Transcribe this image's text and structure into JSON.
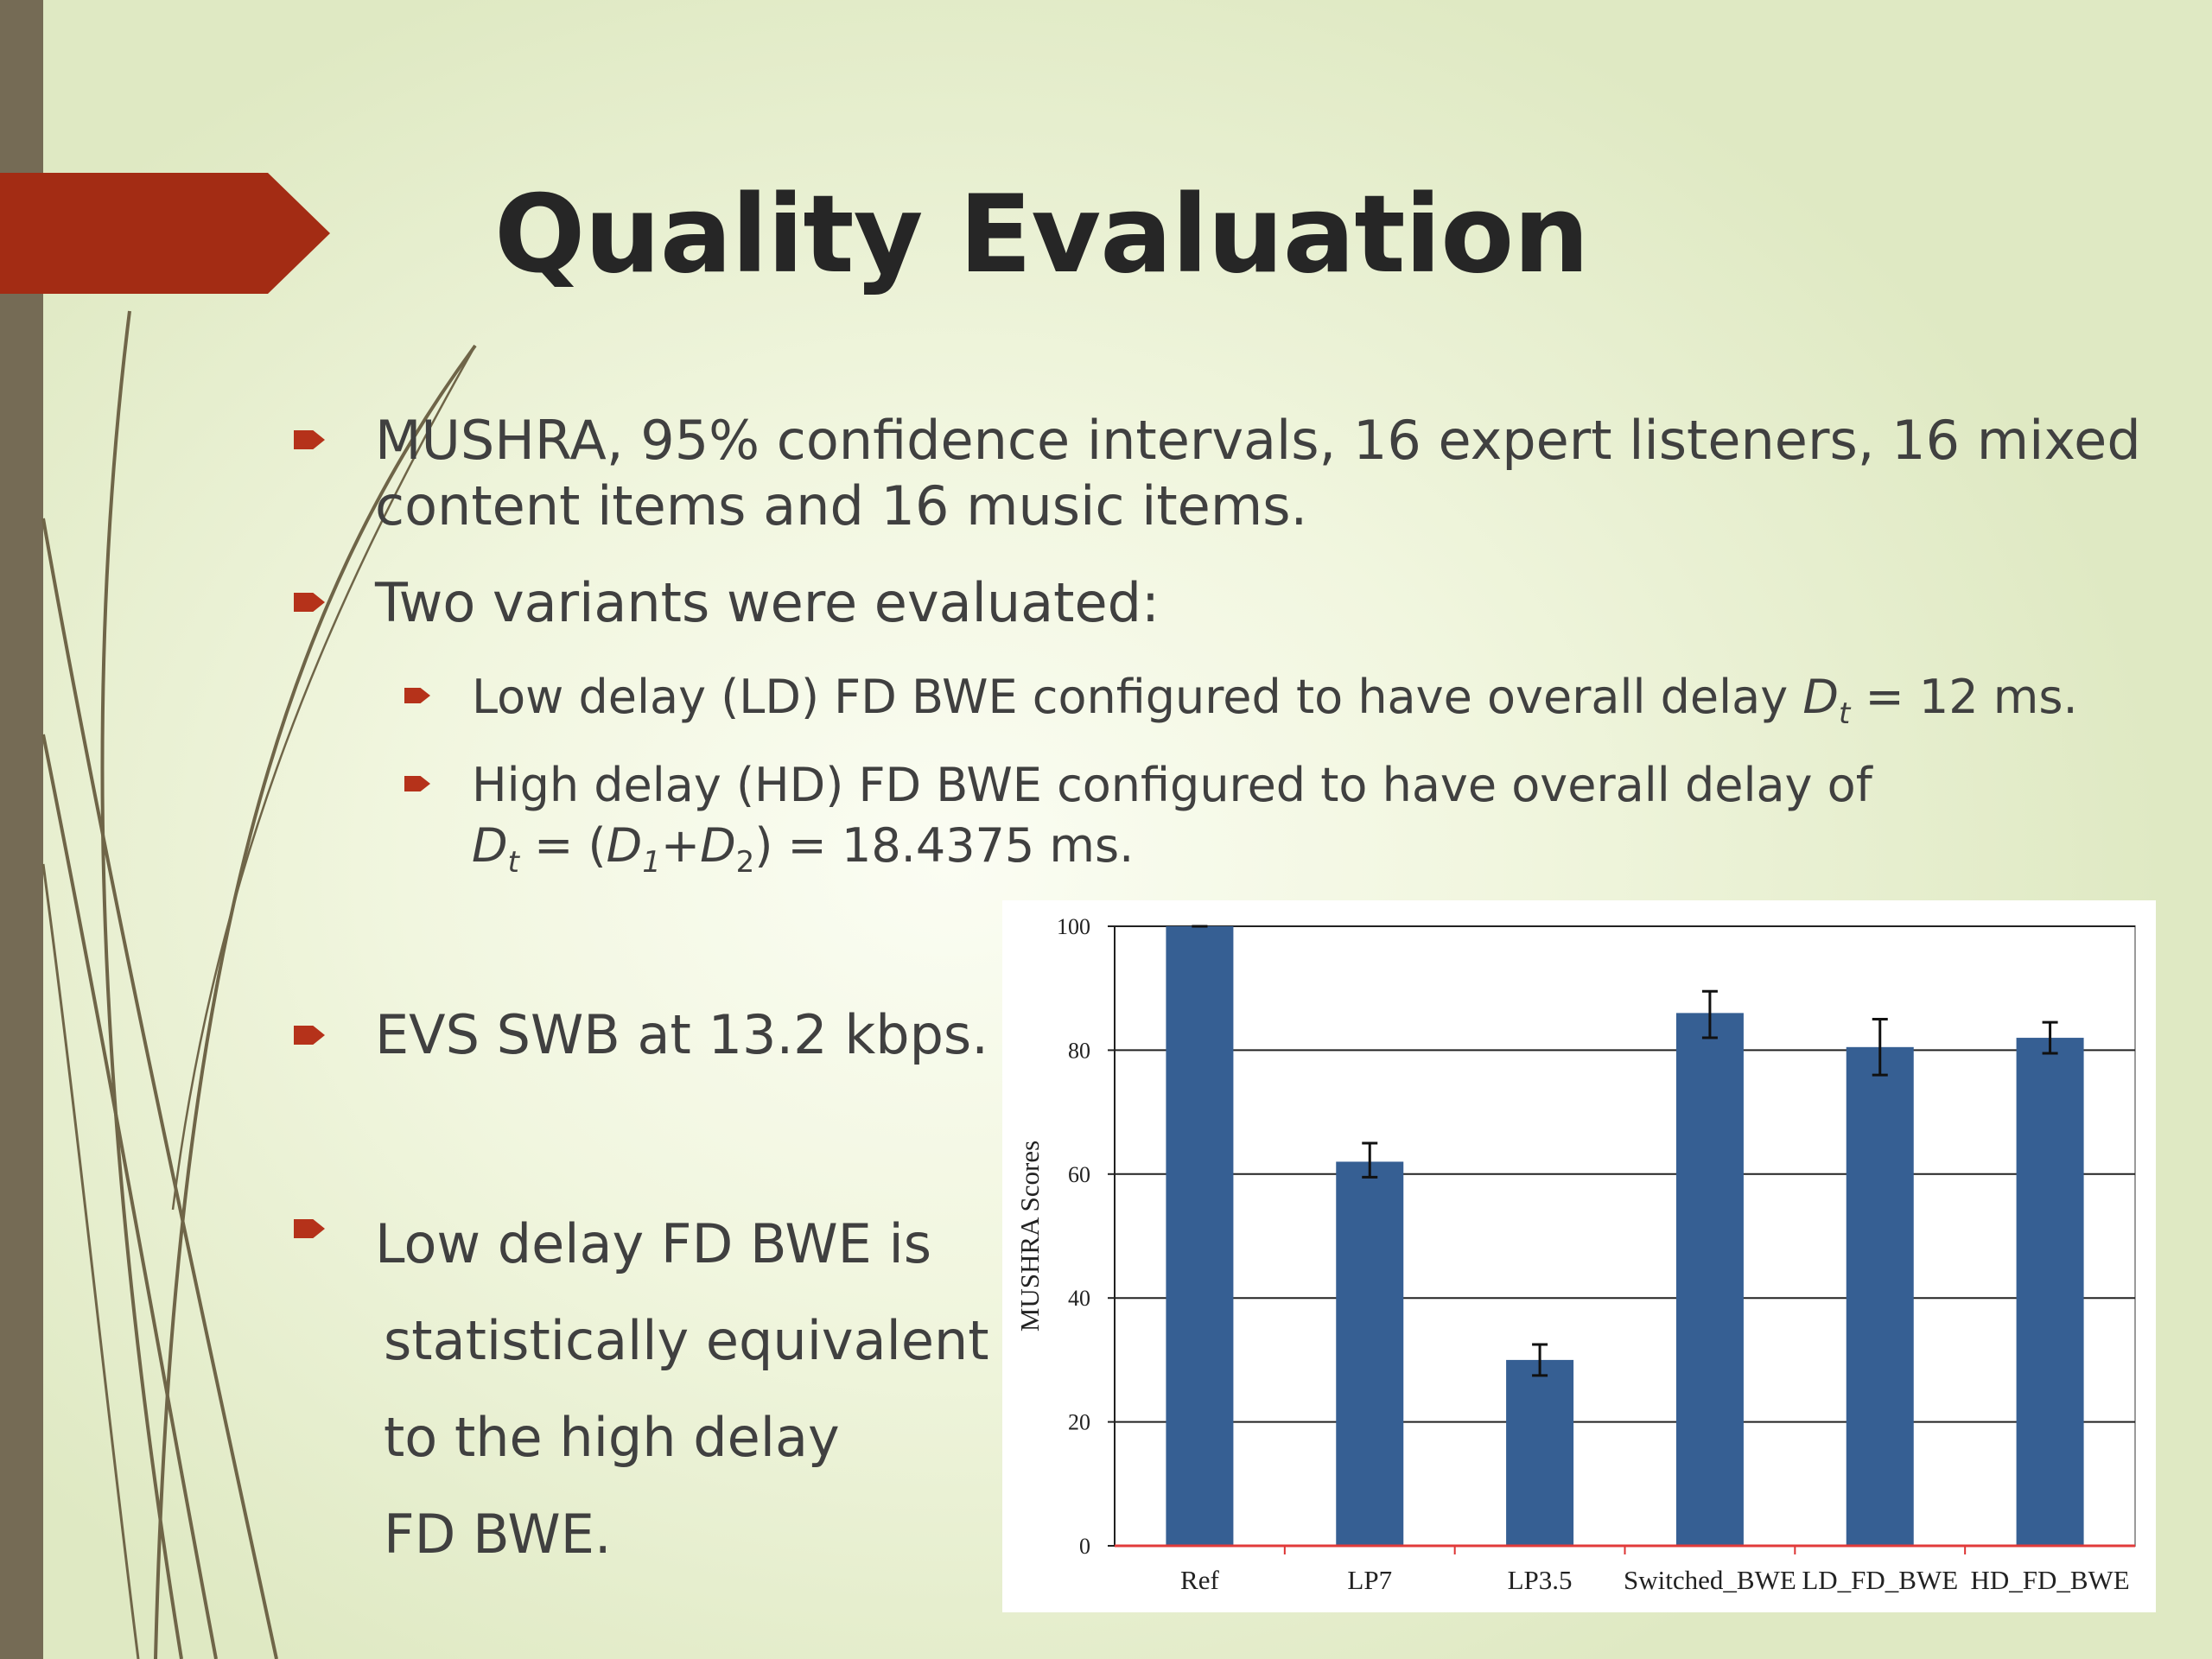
{
  "slide": {
    "title": "Quality Evaluation",
    "bullets": [
      {
        "line1": "MUSHRA, 95% confidence intervals, 16 expert listeners, 16 mixed",
        "line2": "content items and 16 music items."
      },
      {
        "text": "Two variants were evaluated:"
      },
      {
        "text": "EVS SWB at 13.2 kbps."
      },
      {
        "line1": "Low delay FD BWE is",
        "line2": "statistically equivalent",
        "line3": "to the high delay",
        "line4": "FD BWE."
      }
    ],
    "sub_bullets": [
      {
        "text_a": "Low delay (LD) FD BWE configured to have overall delay ",
        "var": "D",
        "sub": "t",
        "text_b": " = 12 ms."
      },
      {
        "line1": "High delay (HD) FD BWE configured to have overall delay of",
        "v1": "D",
        "s1": "t",
        "t1": " = (",
        "v2": "D",
        "s2": "1",
        "t2": "+",
        "v3": "D",
        "s3": "2",
        "t3": ") = 18.4375 ms."
      }
    ]
  },
  "colors": {
    "accent": "#b5321a",
    "sidebar": "#756b55",
    "bar": "#365f93"
  },
  "chart_data": {
    "type": "bar",
    "categories": [
      "Ref",
      "LP7",
      "LP3.5",
      "Switched_BWE",
      "LD_FD_BWE",
      "HD_FD_BWE"
    ],
    "values": [
      100,
      62,
      30,
      86,
      80.5,
      82
    ],
    "error_bars": [
      [
        100,
        100
      ],
      [
        59.5,
        65
      ],
      [
        27.5,
        32.5
      ],
      [
        82,
        89.5
      ],
      [
        76,
        85
      ],
      [
        79.5,
        84.5
      ]
    ],
    "ylabel": "MUSHRA Scores",
    "xlabel": "",
    "ylim": [
      0,
      100
    ],
    "yticks": [
      0,
      20,
      40,
      60,
      80,
      100
    ],
    "grid": true
  }
}
